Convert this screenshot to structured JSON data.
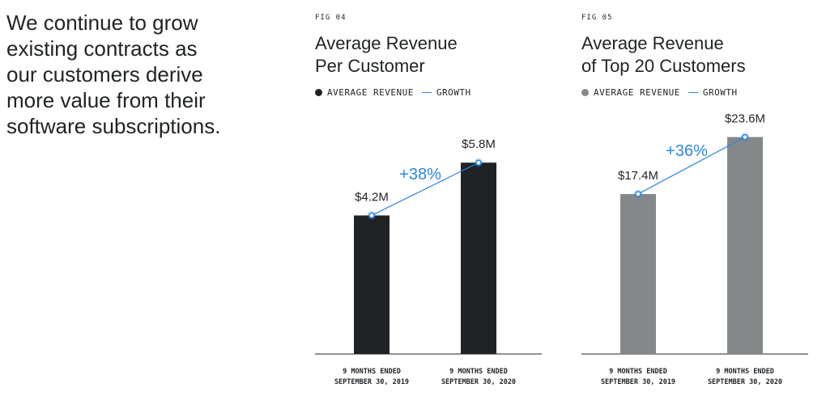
{
  "headline": "We continue to grow\nexisting contracts as\nour customers derive\nmore value from their\nsoftware subscriptions.",
  "colors": {
    "growth": "#2b85e4"
  },
  "chart_data": [
    {
      "type": "bar",
      "fig_label": "FIG 04",
      "title": "Average Revenue\nPer Customer",
      "legend": {
        "bars": "AVERAGE REVENUE",
        "growth": "GROWTH",
        "position": "top-left"
      },
      "bar_color": "#1f2326",
      "categories": [
        [
          "9 MONTHS ENDED",
          "SEPTEMBER 30, 2019"
        ],
        [
          "9 MONTHS ENDED",
          "SEPTEMBER 30, 2020"
        ]
      ],
      "values": [
        4.2,
        5.8
      ],
      "value_labels": [
        "$4.2M",
        "$5.8M"
      ],
      "unit": "$M",
      "growth_label": "+38%",
      "ylim": [
        0,
        7.3
      ],
      "grid": false
    },
    {
      "type": "bar",
      "fig_label": "FIG 05",
      "title": "Average Revenue\nof Top 20 Customers",
      "legend": {
        "bars": "AVERAGE REVENUE",
        "growth": "GROWTH",
        "position": "top-left"
      },
      "bar_color": "#858889",
      "categories": [
        [
          "9 MONTHS ENDED",
          "SEPTEMBER 30, 2019"
        ],
        [
          "9 MONTHS ENDED",
          "SEPTEMBER 30, 2020"
        ]
      ],
      "values": [
        17.4,
        23.6
      ],
      "value_labels": [
        "$17.4M",
        "$23.6M"
      ],
      "unit": "$M",
      "growth_label": "+36%",
      "ylim": [
        0,
        26.2
      ],
      "grid": false
    }
  ]
}
